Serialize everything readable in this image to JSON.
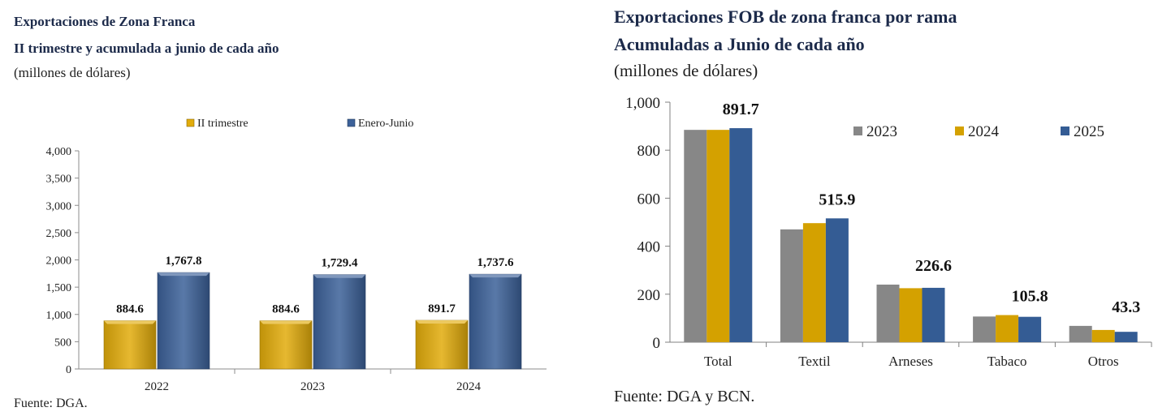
{
  "charts": [
    {
      "title": "Exportaciones de Zona Franca",
      "subtitle": "II trimestre y acumulada a junio de cada año",
      "units": "(millones de dólares)",
      "source": "Fuente: DGA.",
      "colors": {
        "II trimestre": "#E2AC0B",
        "Enero-Junio": "#3C6199"
      },
      "chart_data": {
        "type": "bar",
        "categories": [
          "2022",
          "2023",
          "2024"
        ],
        "series": [
          {
            "name": "II trimestre",
            "values": [
              884.6,
              884.6,
              891.7
            ]
          },
          {
            "name": "Enero-Junio",
            "values": [
              1767.8,
              1729.4,
              1737.6
            ]
          }
        ],
        "data_labels": [
          [
            "884.6",
            "884.6",
            "891.7"
          ],
          [
            "1,767.8",
            "1,729.4",
            "1,737.6"
          ]
        ],
        "y_ticks": [
          "0",
          "500",
          "1,000",
          "1,500",
          "2,000",
          "2,500",
          "3,000",
          "3,500",
          "4,000"
        ],
        "ylim": [
          0,
          4000
        ],
        "legend_position": "top",
        "grid": false
      }
    },
    {
      "title": "Exportaciones FOB de zona franca por rama",
      "subtitle": "Acumuladas a Junio de cada año",
      "units": "(millones de dólares)",
      "source": "Fuente: DGA y BCN.",
      "colors": {
        "2023": "#878787",
        "2024": "#D4A100",
        "2025": "#345C94"
      },
      "chart_data": {
        "type": "bar",
        "categories": [
          "Total",
          "Textil",
          "Arneses",
          "Tabaco",
          "Otros"
        ],
        "series": [
          {
            "name": "2023",
            "values": [
              884.6,
              470,
              240,
              107,
              68
            ]
          },
          {
            "name": "2024",
            "values": [
              884.6,
              496,
              225,
              113,
              51
            ]
          },
          {
            "name": "2025",
            "values": [
              891.7,
              515.9,
              226.6,
              105.8,
              43.3
            ]
          }
        ],
        "data_labels": [
          "891.7",
          "515.9",
          "226.6",
          "105.8",
          "43.3"
        ],
        "y_ticks": [
          "0",
          "200",
          "400",
          "600",
          "800",
          "1,000"
        ],
        "ylim": [
          0,
          1000
        ],
        "legend_position": "top-right",
        "grid": false
      }
    }
  ]
}
